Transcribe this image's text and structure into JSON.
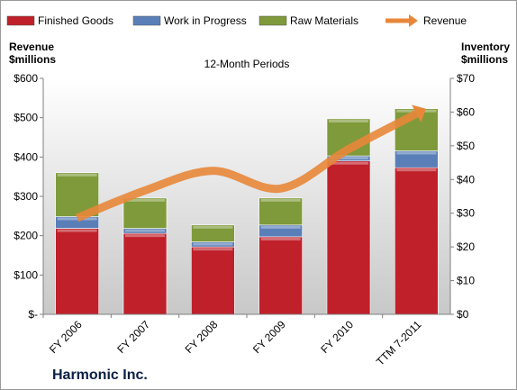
{
  "chart_data": {
    "type": "bar",
    "subtitle": "12-Month Periods",
    "company": "Harmonic Inc.",
    "left_axis_label_line1": "Revenue",
    "left_axis_label_line2": "$millions",
    "right_axis_label_line1": "Inventory",
    "right_axis_label_line2": "$millions",
    "categories": [
      "FY 2006",
      "FY 2007",
      "FY 2008",
      "FY 2009",
      "FY 2010",
      "TTM 7-2011"
    ],
    "series": [
      {
        "name": "Finished Goods",
        "axis": "right",
        "stacked": true,
        "color": "#c0202a",
        "values": [
          25.5,
          24,
          20,
          23,
          45.5,
          43.5
        ]
      },
      {
        "name": "Work in Progress",
        "axis": "right",
        "stacked": true,
        "color": "#5a7fb8",
        "values": [
          3.5,
          1.5,
          1.5,
          3.5,
          1.5,
          5
        ]
      },
      {
        "name": "Raw Materials",
        "axis": "right",
        "stacked": true,
        "color": "#7f9a3a",
        "values": [
          13,
          9,
          5,
          8,
          11,
          12.5
        ]
      },
      {
        "name": "Revenue",
        "axis": "left",
        "type": "line",
        "color": "#e8873a",
        "values": [
          245,
          315,
          365,
          320,
          420,
          510
        ]
      }
    ],
    "left_axis": {
      "ylim": [
        0,
        600
      ],
      "ticks": [
        "$-",
        "$100",
        "$200",
        "$300",
        "$400",
        "$500",
        "$600"
      ]
    },
    "right_axis": {
      "ylim": [
        0,
        70
      ],
      "ticks": [
        "$0",
        "$10",
        "$20",
        "$30",
        "$40",
        "$50",
        "$60",
        "$70"
      ]
    },
    "legend_position": "top",
    "grid": false
  }
}
